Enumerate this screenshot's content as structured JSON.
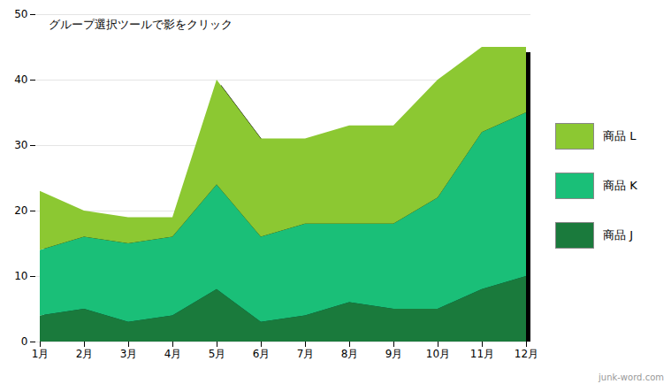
{
  "chart_data": {
    "type": "area",
    "stacked": true,
    "categories": [
      "1月",
      "2月",
      "3月",
      "4月",
      "5月",
      "6月",
      "7月",
      "8月",
      "9月",
      "10月",
      "11月",
      "12月"
    ],
    "series": [
      {
        "name": "商品 J",
        "color": "#1a7a3c",
        "values": [
          4,
          5,
          3,
          4,
          8,
          3,
          4,
          6,
          5,
          5,
          8,
          10
        ]
      },
      {
        "name": "商品 K",
        "color": "#1abf78",
        "values": [
          10,
          11,
          12,
          12,
          16,
          13,
          14,
          12,
          13,
          17,
          24,
          25
        ]
      },
      {
        "name": "商品 L",
        "color": "#8cc832",
        "values": [
          9,
          4,
          4,
          3,
          16,
          15,
          13,
          15,
          15,
          18,
          13,
          10
        ]
      }
    ],
    "ylim": [
      0,
      50
    ],
    "yticks": [
      0,
      10,
      20,
      30,
      40,
      50
    ],
    "grid": true,
    "legend": "right",
    "annotations": [
      "グループ選択ツールで影をクリック",
      "junk-word.com"
    ]
  }
}
